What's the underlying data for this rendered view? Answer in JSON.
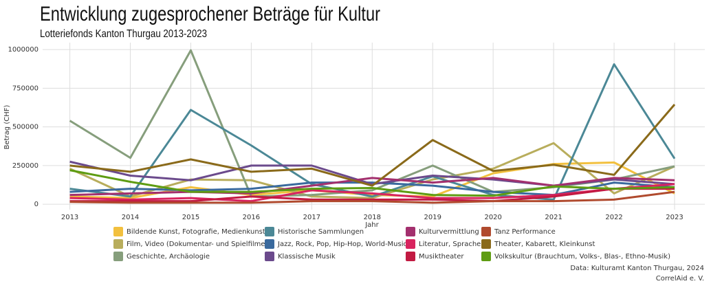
{
  "chart_data": {
    "type": "line",
    "title": "Entwicklung zugesprochener Beträge für Kultur",
    "subtitle": "Lotteriefonds Kanton Thurgau 2013-2023",
    "x_label": "Jahr",
    "y_label": "Betrag (CHF)",
    "caption": [
      "Data: Kulturamt Kanton Thurgau, 2024",
      "CorrelAid e. V."
    ],
    "x": [
      2013,
      2014,
      2015,
      2016,
      2017,
      2018,
      2019,
      2020,
      2021,
      2022,
      2023
    ],
    "xlim": [
      2012.55,
      2023.5
    ],
    "xticks": [
      2013,
      2014,
      2015,
      2016,
      2017,
      2018,
      2019,
      2020,
      2021,
      2022,
      2023
    ],
    "ylim": [
      -35000,
      1045000
    ],
    "yticks": [
      0,
      250000,
      500000,
      750000,
      1000000
    ],
    "grid": true,
    "series": [
      {
        "name": "Bildende Kunst, Fotografie, Medienkunst",
        "color": "#f2c03e",
        "values": [
          50000,
          40000,
          110000,
          60000,
          90000,
          60000,
          50000,
          200000,
          260000,
          270000,
          70000
        ]
      },
      {
        "name": "Film, Video (Dokumentar- und Spielfilme)",
        "color": "#b8ad5c",
        "values": [
          230000,
          50000,
          160000,
          155000,
          50000,
          40000,
          160000,
          230000,
          395000,
          70000,
          245000
        ]
      },
      {
        "name": "Geschichte, Archäologie",
        "color": "#869e7c",
        "values": [
          540000,
          300000,
          995000,
          50000,
          60000,
          90000,
          250000,
          80000,
          110000,
          160000,
          245000
        ]
      },
      {
        "name": "Historische Sammlungen",
        "color": "#4b8896",
        "values": [
          100000,
          50000,
          610000,
          380000,
          130000,
          50000,
          180000,
          60000,
          30000,
          905000,
          295000
        ]
      },
      {
        "name": "Jazz, Rock, Pop, Hip-Hop, World-Music",
        "color": "#3a6a9e",
        "values": [
          80000,
          100000,
          90000,
          100000,
          140000,
          140000,
          120000,
          80000,
          60000,
          140000,
          110000
        ]
      },
      {
        "name": "Klassische Musik",
        "color": "#6b4a8c",
        "values": [
          275000,
          185000,
          155000,
          250000,
          250000,
          130000,
          185000,
          160000,
          120000,
          160000,
          130000
        ]
      },
      {
        "name": "Kulturvermittlung",
        "color": "#a3306e",
        "values": [
          60000,
          70000,
          80000,
          70000,
          120000,
          170000,
          140000,
          170000,
          120000,
          170000,
          155000
        ]
      },
      {
        "name": "Literatur, Sprache",
        "color": "#d8245f",
        "values": [
          40000,
          30000,
          40000,
          20000,
          90000,
          70000,
          40000,
          40000,
          60000,
          100000,
          130000
        ]
      },
      {
        "name": "Musiktheater",
        "color": "#c21a42",
        "values": [
          20000,
          20000,
          20000,
          50000,
          30000,
          30000,
          30000,
          20000,
          50000,
          100000,
          100000
        ]
      },
      {
        "name": "Tanz Performance",
        "color": "#b04a2e",
        "values": [
          15000,
          10000,
          10000,
          10000,
          20000,
          20000,
          10000,
          20000,
          20000,
          30000,
          80000
        ]
      },
      {
        "name": "Theater, Kabarett, Kleinkunst",
        "color": "#8a6a1a",
        "values": [
          250000,
          210000,
          290000,
          210000,
          230000,
          120000,
          415000,
          215000,
          255000,
          190000,
          645000
        ]
      },
      {
        "name": "Volkskultur (Brauchtum, Volks-, Blas-, Ethno-Musik)",
        "color": "#5e9c12",
        "values": [
          220000,
          145000,
          80000,
          80000,
          100000,
          105000,
          60000,
          55000,
          115000,
          100000,
          110000
        ]
      }
    ]
  }
}
